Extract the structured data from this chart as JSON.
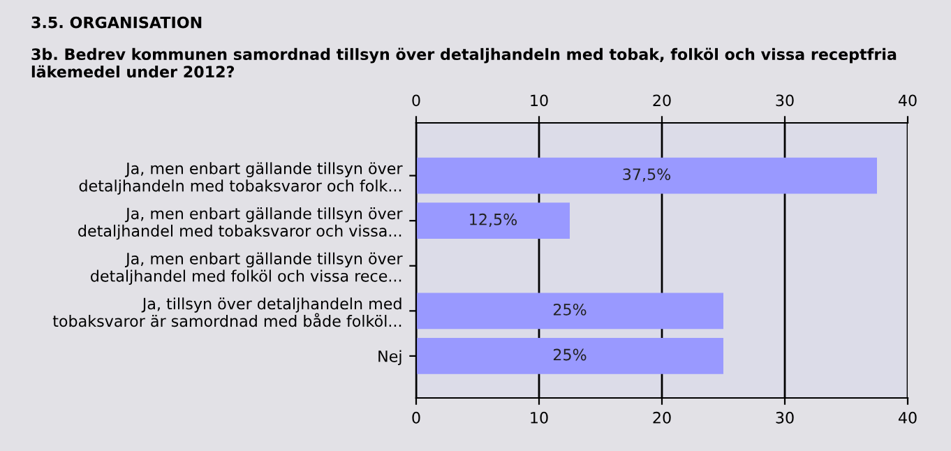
{
  "chart_data": {
    "type": "bar",
    "orientation": "horizontal",
    "title": "3.5. ORGANISATION",
    "subtitle": "3b. Bedrev kommunen samordnad tillsyn över detaljhandeln med tobak, folköl och vissa receptfria läkemedel under 2012?",
    "categories": [
      "Ja, men enbart gällande tillsyn över\ndetaljhandeln med tobaksvaror och folk...",
      "Ja, men enbart gällande tillsyn över\ndetaljhandel med tobaksvaror och vissa...",
      "Ja, men enbart gällande tillsyn över\ndetaljhandel med folköl och vissa rece...",
      "Ja, tillsyn över detaljhandeln med\ntobaksvaror är samordnad med både folköl...",
      "Nej"
    ],
    "values": [
      37.5,
      12.5,
      0,
      25,
      25
    ],
    "value_labels": [
      "37,5%",
      "12,5%",
      null,
      "25%",
      "25%"
    ],
    "color": "#9999ff",
    "xlim": [
      0,
      40
    ],
    "xticks": [
      0,
      10,
      20,
      30,
      40
    ],
    "x2lim": [
      0,
      40
    ],
    "x2ticks": [
      0,
      10,
      20,
      30,
      40
    ],
    "grid": "x",
    "legend": false
  }
}
